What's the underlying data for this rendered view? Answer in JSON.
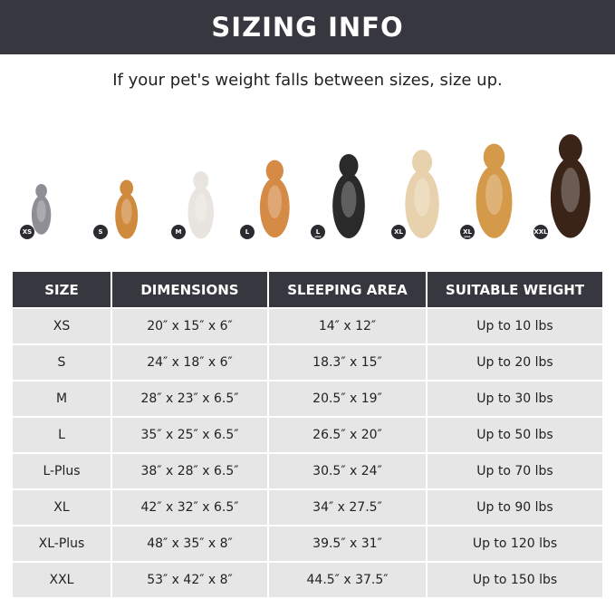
{
  "title": "SIZING INFO",
  "subtitle": "If your pet's weight falls between sizes, size up.",
  "pets": [
    {
      "badge": "XS",
      "plus": "",
      "color": "#8e8e94"
    },
    {
      "badge": "S",
      "plus": "",
      "color": "#d08a3e"
    },
    {
      "badge": "M",
      "plus": "",
      "color": "#e8e4df"
    },
    {
      "badge": "L",
      "plus": "",
      "color": "#d58a45"
    },
    {
      "badge": "L",
      "plus": "plus",
      "color": "#2a2a2a"
    },
    {
      "badge": "XL",
      "plus": "",
      "color": "#e7d2ad"
    },
    {
      "badge": "XL",
      "plus": "plus",
      "color": "#d49a4a"
    },
    {
      "badge": "XXL",
      "plus": "",
      "color": "#3a2418"
    }
  ],
  "table": {
    "headers": [
      "SIZE",
      "DIMENSIONS",
      "SLEEPING AREA",
      "SUITABLE WEIGHT"
    ],
    "rows": [
      [
        "XS",
        "20″ x 15″ x 6″",
        "14″ x 12″",
        "Up to 10 lbs"
      ],
      [
        "S",
        "24″ x 18″ x 6″",
        "18.3″ x 15″",
        "Up to 20 lbs"
      ],
      [
        "M",
        "28″ x 23″ x 6.5″",
        "20.5″ x 19″",
        "Up to 30 lbs"
      ],
      [
        "L",
        "35″ x 25″ x 6.5″",
        "26.5″ x 20″",
        "Up to 50 lbs"
      ],
      [
        "L-Plus",
        "38″ x 28″ x 6.5″",
        "30.5″ x 24″",
        "Up to 70 lbs"
      ],
      [
        "XL",
        "42″ x 32″ x 6.5″",
        "34″ x 27.5″",
        "Up to 90 lbs"
      ],
      [
        "XL-Plus",
        "48″ x 35″ x 8″",
        "39.5″ x 31″",
        "Up to 120 lbs"
      ],
      [
        "XXL",
        "53″ x 42″ x 8″",
        "44.5″ x 37.5″",
        "Up to 150 lbs"
      ]
    ]
  }
}
